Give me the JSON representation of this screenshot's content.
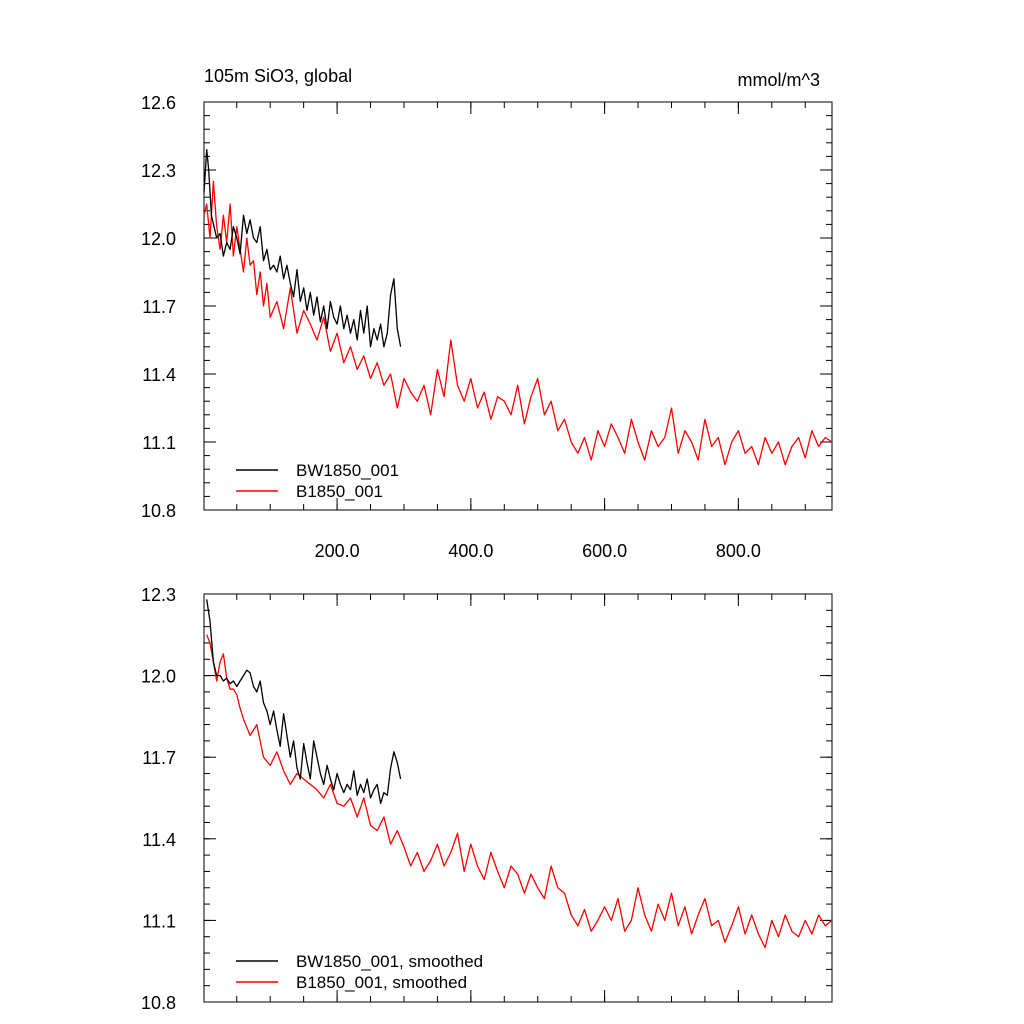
{
  "chart_data": [
    {
      "type": "line",
      "title": "105m SiO3, global",
      "units": "mmol/m^3",
      "xlim": [
        1,
        940
      ],
      "ylim": [
        10.8,
        12.6
      ],
      "xticks": [
        200,
        400,
        600,
        800
      ],
      "xtick_labels": [
        "200.0",
        "400.0",
        "600.0",
        "800.0"
      ],
      "yticks": [
        10.8,
        11.1,
        11.4,
        11.7,
        12.0,
        12.3,
        12.6
      ],
      "ytick_labels": [
        "10.8",
        "11.1",
        "11.4",
        "11.7",
        "12.0",
        "12.3",
        "12.6"
      ],
      "legend_placement": "bottom-left",
      "grid": false,
      "series": [
        {
          "name": "BW1850_001",
          "color": "#000000",
          "x": [
            1,
            5,
            8,
            12,
            16,
            20,
            25,
            30,
            35,
            40,
            45,
            50,
            55,
            60,
            65,
            70,
            75,
            80,
            85,
            90,
            95,
            100,
            105,
            110,
            115,
            120,
            125,
            130,
            135,
            140,
            145,
            150,
            155,
            160,
            165,
            170,
            175,
            180,
            185,
            190,
            195,
            200,
            205,
            210,
            215,
            220,
            225,
            230,
            235,
            240,
            245,
            250,
            255,
            260,
            265,
            270,
            275,
            280,
            285,
            290,
            295
          ],
          "y": [
            12.2,
            12.39,
            12.3,
            12.1,
            12.05,
            12.0,
            12.02,
            11.92,
            11.98,
            11.95,
            12.05,
            12.0,
            11.93,
            12.1,
            12.02,
            12.08,
            12.0,
            11.98,
            12.05,
            11.9,
            11.95,
            11.86,
            11.88,
            11.85,
            11.92,
            11.82,
            11.88,
            11.8,
            11.74,
            11.86,
            11.72,
            11.78,
            11.68,
            11.76,
            11.66,
            11.74,
            11.63,
            11.7,
            11.6,
            11.72,
            11.65,
            11.62,
            11.7,
            11.6,
            11.66,
            11.58,
            11.64,
            11.55,
            11.68,
            11.58,
            11.7,
            11.52,
            11.6,
            11.55,
            11.62,
            11.52,
            11.58,
            11.75,
            11.82,
            11.6,
            11.52
          ]
        },
        {
          "name": "B1850_001",
          "color": "#ff0000",
          "x": [
            1,
            5,
            10,
            15,
            20,
            25,
            30,
            35,
            40,
            45,
            50,
            55,
            60,
            65,
            70,
            75,
            80,
            85,
            90,
            95,
            100,
            110,
            120,
            130,
            140,
            150,
            160,
            170,
            180,
            190,
            200,
            210,
            220,
            230,
            240,
            250,
            260,
            270,
            280,
            290,
            300,
            310,
            320,
            330,
            340,
            350,
            360,
            370,
            380,
            390,
            400,
            410,
            420,
            430,
            440,
            450,
            460,
            470,
            480,
            490,
            500,
            510,
            520,
            530,
            540,
            550,
            560,
            570,
            580,
            590,
            600,
            610,
            620,
            630,
            640,
            650,
            660,
            670,
            680,
            690,
            700,
            710,
            720,
            730,
            740,
            750,
            760,
            770,
            780,
            790,
            800,
            810,
            820,
            830,
            840,
            850,
            860,
            870,
            880,
            890,
            900,
            910,
            920,
            930,
            940
          ],
          "y": [
            12.1,
            12.15,
            12.0,
            12.25,
            12.05,
            11.95,
            12.1,
            11.98,
            12.15,
            11.92,
            12.05,
            11.95,
            11.85,
            12.0,
            11.88,
            11.9,
            11.75,
            11.85,
            11.7,
            11.8,
            11.65,
            11.72,
            11.6,
            11.78,
            11.58,
            11.68,
            11.62,
            11.55,
            11.65,
            11.5,
            11.58,
            11.45,
            11.52,
            11.42,
            11.48,
            11.38,
            11.45,
            11.35,
            11.4,
            11.25,
            11.38,
            11.32,
            11.28,
            11.35,
            11.22,
            11.42,
            11.3,
            11.55,
            11.35,
            11.28,
            11.38,
            11.25,
            11.32,
            11.2,
            11.3,
            11.28,
            11.22,
            11.35,
            11.18,
            11.3,
            11.38,
            11.22,
            11.28,
            11.15,
            11.2,
            11.1,
            11.05,
            11.12,
            11.02,
            11.15,
            11.08,
            11.18,
            11.12,
            11.05,
            11.2,
            11.1,
            11.02,
            11.15,
            11.08,
            11.12,
            11.25,
            11.05,
            11.15,
            11.1,
            11.02,
            11.2,
            11.08,
            11.12,
            11.0,
            11.1,
            11.15,
            11.05,
            11.08,
            11.0,
            11.12,
            11.05,
            11.1,
            11.0,
            11.08,
            11.12,
            11.03,
            11.15,
            11.08,
            11.12,
            11.1
          ]
        }
      ]
    },
    {
      "type": "line",
      "xlim": [
        1,
        940
      ],
      "ylim": [
        10.8,
        12.3
      ],
      "yticks": [
        10.8,
        11.1,
        11.4,
        11.7,
        12.0,
        12.3
      ],
      "ytick_labels": [
        "10.8",
        "11.1",
        "11.4",
        "11.7",
        "12.0",
        "12.3"
      ],
      "legend_placement": "bottom-left",
      "grid": false,
      "series": [
        {
          "name": "BW1850_001, smoothed",
          "color": "#000000",
          "x": [
            5,
            10,
            15,
            20,
            25,
            30,
            35,
            40,
            45,
            50,
            55,
            60,
            65,
            70,
            75,
            80,
            85,
            90,
            95,
            100,
            105,
            110,
            115,
            120,
            125,
            130,
            135,
            140,
            145,
            150,
            155,
            160,
            165,
            170,
            175,
            180,
            185,
            190,
            195,
            200,
            205,
            210,
            215,
            220,
            225,
            230,
            235,
            240,
            245,
            250,
            255,
            260,
            265,
            270,
            275,
            280,
            285,
            290,
            295
          ],
          "y": [
            12.28,
            12.2,
            12.05,
            12.0,
            12.0,
            11.98,
            11.99,
            11.97,
            11.98,
            11.96,
            11.98,
            12.0,
            12.02,
            12.01,
            11.96,
            11.94,
            11.98,
            11.9,
            11.87,
            11.82,
            11.87,
            11.8,
            11.74,
            11.86,
            11.78,
            11.7,
            11.76,
            11.66,
            11.62,
            11.75,
            11.68,
            11.62,
            11.76,
            11.7,
            11.64,
            11.6,
            11.67,
            11.62,
            11.58,
            11.64,
            11.6,
            11.57,
            11.6,
            11.58,
            11.65,
            11.56,
            11.6,
            11.57,
            11.62,
            11.55,
            11.58,
            11.6,
            11.53,
            11.57,
            11.56,
            11.66,
            11.72,
            11.68,
            11.62
          ]
        },
        {
          "name": "B1850_001, smoothed",
          "color": "#ff0000",
          "x": [
            5,
            10,
            15,
            20,
            25,
            30,
            35,
            40,
            45,
            50,
            55,
            60,
            70,
            80,
            90,
            100,
            110,
            120,
            130,
            140,
            150,
            160,
            170,
            180,
            190,
            200,
            210,
            220,
            230,
            240,
            250,
            260,
            270,
            280,
            290,
            300,
            310,
            320,
            330,
            340,
            350,
            360,
            370,
            380,
            390,
            400,
            410,
            420,
            430,
            440,
            450,
            460,
            470,
            480,
            490,
            500,
            510,
            520,
            530,
            540,
            550,
            560,
            570,
            580,
            590,
            600,
            610,
            620,
            630,
            640,
            650,
            660,
            670,
            680,
            690,
            700,
            710,
            720,
            730,
            740,
            750,
            760,
            770,
            780,
            790,
            800,
            810,
            820,
            830,
            840,
            850,
            860,
            870,
            880,
            890,
            900,
            910,
            920,
            930,
            940
          ],
          "y": [
            12.15,
            12.12,
            12.05,
            11.98,
            12.05,
            12.08,
            11.99,
            11.95,
            11.95,
            11.93,
            11.88,
            11.84,
            11.78,
            11.82,
            11.7,
            11.67,
            11.72,
            11.65,
            11.6,
            11.64,
            11.62,
            11.6,
            11.58,
            11.55,
            11.6,
            11.53,
            11.52,
            11.55,
            11.48,
            11.55,
            11.45,
            11.43,
            11.48,
            11.38,
            11.43,
            11.37,
            11.3,
            11.35,
            11.28,
            11.32,
            11.38,
            11.3,
            11.35,
            11.42,
            11.28,
            11.38,
            11.3,
            11.25,
            11.35,
            11.28,
            11.22,
            11.3,
            11.27,
            11.2,
            11.27,
            11.22,
            11.18,
            11.3,
            11.22,
            11.2,
            11.12,
            11.08,
            11.14,
            11.06,
            11.1,
            11.15,
            11.1,
            11.18,
            11.06,
            11.1,
            11.22,
            11.12,
            11.06,
            11.16,
            11.1,
            11.2,
            11.08,
            11.15,
            11.05,
            11.12,
            11.18,
            11.08,
            11.1,
            11.02,
            11.08,
            11.15,
            11.05,
            11.12,
            11.05,
            11.0,
            11.1,
            11.04,
            11.12,
            11.06,
            11.04,
            11.1,
            11.05,
            11.12,
            11.08,
            11.1
          ]
        }
      ]
    }
  ]
}
